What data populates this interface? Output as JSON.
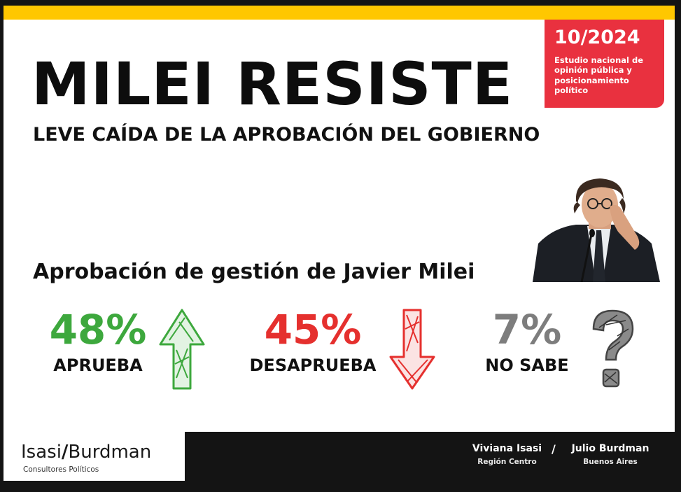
{
  "header": {
    "title": "MILEI RESISTE",
    "subtitle": "LEVE CAÍDA DE LA APROBACIÓN DEL GOBIERNO"
  },
  "badge": {
    "date": "10/2024",
    "text": "Estudio nacional de opinión pública y posicionamiento político"
  },
  "section": {
    "title": "Aprobación de gestión de Javier Milei"
  },
  "stats": [
    {
      "value": "48%",
      "label": "APRUEBA",
      "color": "#3da83d",
      "icon": "arrow-up-icon"
    },
    {
      "value": "45%",
      "label": "DESAPRUEBA",
      "color": "#e5302e",
      "icon": "arrow-down-icon"
    },
    {
      "value": "7%",
      "label": "NO SABE",
      "color": "#7d7d7d",
      "icon": "question-mark-icon"
    }
  ],
  "footer": {
    "logo_left": "Isasi",
    "logo_slash": "/",
    "logo_right": "Burdman",
    "logo_sub": "Consultores Políticos",
    "credits": [
      {
        "name": "Viviana Isasi",
        "region": "Región Centro"
      },
      {
        "name": "Julio Burdman",
        "region": "Buenos Aires"
      }
    ],
    "separator": "/"
  },
  "colors": {
    "accent_yellow": "#ffc700",
    "badge_red": "#e9313f",
    "footer_dark": "#141414"
  }
}
